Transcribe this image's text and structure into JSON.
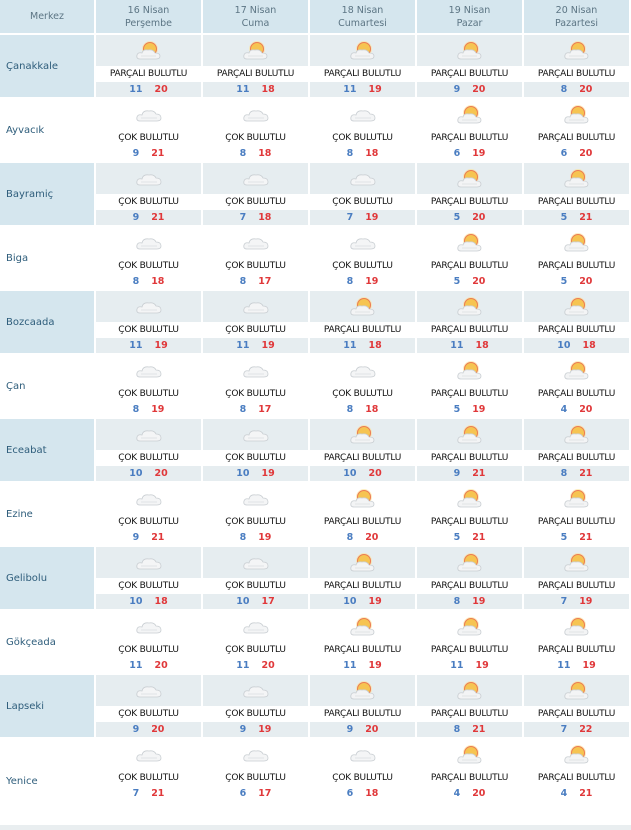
{
  "header": {
    "center_label": "Merkez",
    "days": [
      {
        "date": "16 Nisan",
        "weekday": "Perşembe"
      },
      {
        "date": "17 Nisan",
        "weekday": "Cuma"
      },
      {
        "date": "18 Nisan",
        "weekday": "Cumartesi"
      },
      {
        "date": "19 Nisan",
        "weekday": "Pazar"
      },
      {
        "date": "20 Nisan",
        "weekday": "Pazartesi"
      }
    ]
  },
  "conditions": {
    "P": "PARÇALI BULUTLU",
    "C": "ÇOK BULUTLU"
  },
  "colors": {
    "low": "#4a7dc1",
    "high": "#e0383a",
    "header_bg": "#d5e6ee"
  },
  "rows": [
    {
      "name": "Çanakkale",
      "days": [
        {
          "c": "PARÇALI BULUTLU",
          "icon": "partly-cloudy-icon",
          "lo": "11",
          "hi": "20"
        },
        {
          "c": "PARÇALI BULUTLU",
          "icon": "partly-cloudy-icon",
          "lo": "11",
          "hi": "18"
        },
        {
          "c": "PARÇALI BULUTLU",
          "icon": "partly-cloudy-icon",
          "lo": "11",
          "hi": "19"
        },
        {
          "c": "PARÇALI BULUTLU",
          "icon": "partly-cloudy-icon",
          "lo": "9",
          "hi": "20"
        },
        {
          "c": "PARÇALI BULUTLU",
          "icon": "partly-cloudy-icon",
          "lo": "8",
          "hi": "20"
        }
      ]
    },
    {
      "name": "Ayvacık",
      "days": [
        {
          "c": "ÇOK BULUTLU",
          "icon": "cloudy-icon",
          "lo": "9",
          "hi": "21"
        },
        {
          "c": "ÇOK BULUTLU",
          "icon": "cloudy-icon",
          "lo": "8",
          "hi": "18"
        },
        {
          "c": "ÇOK BULUTLU",
          "icon": "cloudy-icon",
          "lo": "8",
          "hi": "18"
        },
        {
          "c": "PARÇALI BULUTLU",
          "icon": "partly-cloudy-icon",
          "lo": "6",
          "hi": "19"
        },
        {
          "c": "PARÇALI BULUTLU",
          "icon": "partly-cloudy-icon",
          "lo": "6",
          "hi": "20"
        }
      ]
    },
    {
      "name": "Bayramiç",
      "days": [
        {
          "c": "ÇOK BULUTLU",
          "icon": "cloudy-icon",
          "lo": "9",
          "hi": "21"
        },
        {
          "c": "ÇOK BULUTLU",
          "icon": "cloudy-icon",
          "lo": "7",
          "hi": "18"
        },
        {
          "c": "ÇOK BULUTLU",
          "icon": "cloudy-icon",
          "lo": "7",
          "hi": "19"
        },
        {
          "c": "PARÇALI BULUTLU",
          "icon": "partly-cloudy-icon",
          "lo": "5",
          "hi": "20"
        },
        {
          "c": "PARÇALI BULUTLU",
          "icon": "partly-cloudy-icon",
          "lo": "5",
          "hi": "21"
        }
      ]
    },
    {
      "name": "Biga",
      "days": [
        {
          "c": "ÇOK BULUTLU",
          "icon": "cloudy-icon",
          "lo": "8",
          "hi": "18"
        },
        {
          "c": "ÇOK BULUTLU",
          "icon": "cloudy-icon",
          "lo": "8",
          "hi": "17"
        },
        {
          "c": "ÇOK BULUTLU",
          "icon": "cloudy-icon",
          "lo": "8",
          "hi": "19"
        },
        {
          "c": "PARÇALI BULUTLU",
          "icon": "partly-cloudy-icon",
          "lo": "5",
          "hi": "20"
        },
        {
          "c": "PARÇALI BULUTLU",
          "icon": "partly-cloudy-icon",
          "lo": "5",
          "hi": "20"
        }
      ]
    },
    {
      "name": "Bozcaada",
      "days": [
        {
          "c": "ÇOK BULUTLU",
          "icon": "cloudy-icon",
          "lo": "11",
          "hi": "19"
        },
        {
          "c": "ÇOK BULUTLU",
          "icon": "cloudy-icon",
          "lo": "11",
          "hi": "19"
        },
        {
          "c": "PARÇALI BULUTLU",
          "icon": "partly-cloudy-icon",
          "lo": "11",
          "hi": "18"
        },
        {
          "c": "PARÇALI BULUTLU",
          "icon": "partly-cloudy-icon",
          "lo": "11",
          "hi": "18"
        },
        {
          "c": "PARÇALI BULUTLU",
          "icon": "partly-cloudy-icon",
          "lo": "10",
          "hi": "18"
        }
      ]
    },
    {
      "name": "Çan",
      "days": [
        {
          "c": "ÇOK BULUTLU",
          "icon": "cloudy-icon",
          "lo": "8",
          "hi": "19"
        },
        {
          "c": "ÇOK BULUTLU",
          "icon": "cloudy-icon",
          "lo": "8",
          "hi": "17"
        },
        {
          "c": "ÇOK BULUTLU",
          "icon": "cloudy-icon",
          "lo": "8",
          "hi": "18"
        },
        {
          "c": "PARÇALI BULUTLU",
          "icon": "partly-cloudy-icon",
          "lo": "5",
          "hi": "19"
        },
        {
          "c": "PARÇALI BULUTLU",
          "icon": "partly-cloudy-icon",
          "lo": "4",
          "hi": "20"
        }
      ]
    },
    {
      "name": "Eceabat",
      "days": [
        {
          "c": "ÇOK BULUTLU",
          "icon": "cloudy-icon",
          "lo": "10",
          "hi": "20"
        },
        {
          "c": "ÇOK BULUTLU",
          "icon": "cloudy-icon",
          "lo": "10",
          "hi": "19"
        },
        {
          "c": "PARÇALI BULUTLU",
          "icon": "partly-cloudy-icon",
          "lo": "10",
          "hi": "20"
        },
        {
          "c": "PARÇALI BULUTLU",
          "icon": "partly-cloudy-icon",
          "lo": "9",
          "hi": "21"
        },
        {
          "c": "PARÇALI BULUTLU",
          "icon": "partly-cloudy-icon",
          "lo": "8",
          "hi": "21"
        }
      ]
    },
    {
      "name": "Ezine",
      "days": [
        {
          "c": "ÇOK BULUTLU",
          "icon": "cloudy-icon",
          "lo": "9",
          "hi": "21"
        },
        {
          "c": "ÇOK BULUTLU",
          "icon": "cloudy-icon",
          "lo": "8",
          "hi": "19"
        },
        {
          "c": "PARÇALI BULUTLU",
          "icon": "partly-cloudy-icon",
          "lo": "8",
          "hi": "20"
        },
        {
          "c": "PARÇALI BULUTLU",
          "icon": "partly-cloudy-icon",
          "lo": "5",
          "hi": "21"
        },
        {
          "c": "PARÇALI BULUTLU",
          "icon": "partly-cloudy-icon",
          "lo": "5",
          "hi": "21"
        }
      ]
    },
    {
      "name": "Gelibolu",
      "days": [
        {
          "c": "ÇOK BULUTLU",
          "icon": "cloudy-icon",
          "lo": "10",
          "hi": "18"
        },
        {
          "c": "ÇOK BULUTLU",
          "icon": "cloudy-icon",
          "lo": "10",
          "hi": "17"
        },
        {
          "c": "PARÇALI BULUTLU",
          "icon": "partly-cloudy-icon",
          "lo": "10",
          "hi": "19"
        },
        {
          "c": "PARÇALI BULUTLU",
          "icon": "partly-cloudy-icon",
          "lo": "8",
          "hi": "19"
        },
        {
          "c": "PARÇALI BULUTLU",
          "icon": "partly-cloudy-icon",
          "lo": "7",
          "hi": "19"
        }
      ]
    },
    {
      "name": "Gökçeada",
      "days": [
        {
          "c": "ÇOK BULUTLU",
          "icon": "cloudy-icon",
          "lo": "11",
          "hi": "20"
        },
        {
          "c": "ÇOK BULUTLU",
          "icon": "cloudy-icon",
          "lo": "11",
          "hi": "20"
        },
        {
          "c": "PARÇALI BULUTLU",
          "icon": "partly-cloudy-icon",
          "lo": "11",
          "hi": "19"
        },
        {
          "c": "PARÇALI BULUTLU",
          "icon": "partly-cloudy-icon",
          "lo": "11",
          "hi": "19"
        },
        {
          "c": "PARÇALI BULUTLU",
          "icon": "partly-cloudy-icon",
          "lo": "11",
          "hi": "19"
        }
      ]
    },
    {
      "name": "Lapseki",
      "days": [
        {
          "c": "ÇOK BULUTLU",
          "icon": "cloudy-icon",
          "lo": "9",
          "hi": "20"
        },
        {
          "c": "ÇOK BULUTLU",
          "icon": "cloudy-icon",
          "lo": "9",
          "hi": "19"
        },
        {
          "c": "PARÇALI BULUTLU",
          "icon": "partly-cloudy-icon",
          "lo": "9",
          "hi": "20"
        },
        {
          "c": "PARÇALI BULUTLU",
          "icon": "partly-cloudy-icon",
          "lo": "8",
          "hi": "21"
        },
        {
          "c": "PARÇALI BULUTLU",
          "icon": "partly-cloudy-icon",
          "lo": "7",
          "hi": "22"
        }
      ]
    },
    {
      "name": "Yenice",
      "days": [
        {
          "c": "ÇOK BULUTLU",
          "icon": "cloudy-icon",
          "lo": "7",
          "hi": "21"
        },
        {
          "c": "ÇOK BULUTLU",
          "icon": "cloudy-icon",
          "lo": "6",
          "hi": "17"
        },
        {
          "c": "ÇOK BULUTLU",
          "icon": "cloudy-icon",
          "lo": "6",
          "hi": "18"
        },
        {
          "c": "PARÇALI BULUTLU",
          "icon": "partly-cloudy-icon",
          "lo": "4",
          "hi": "20"
        },
        {
          "c": "PARÇALI BULUTLU",
          "icon": "partly-cloudy-icon",
          "lo": "4",
          "hi": "21"
        }
      ]
    }
  ]
}
